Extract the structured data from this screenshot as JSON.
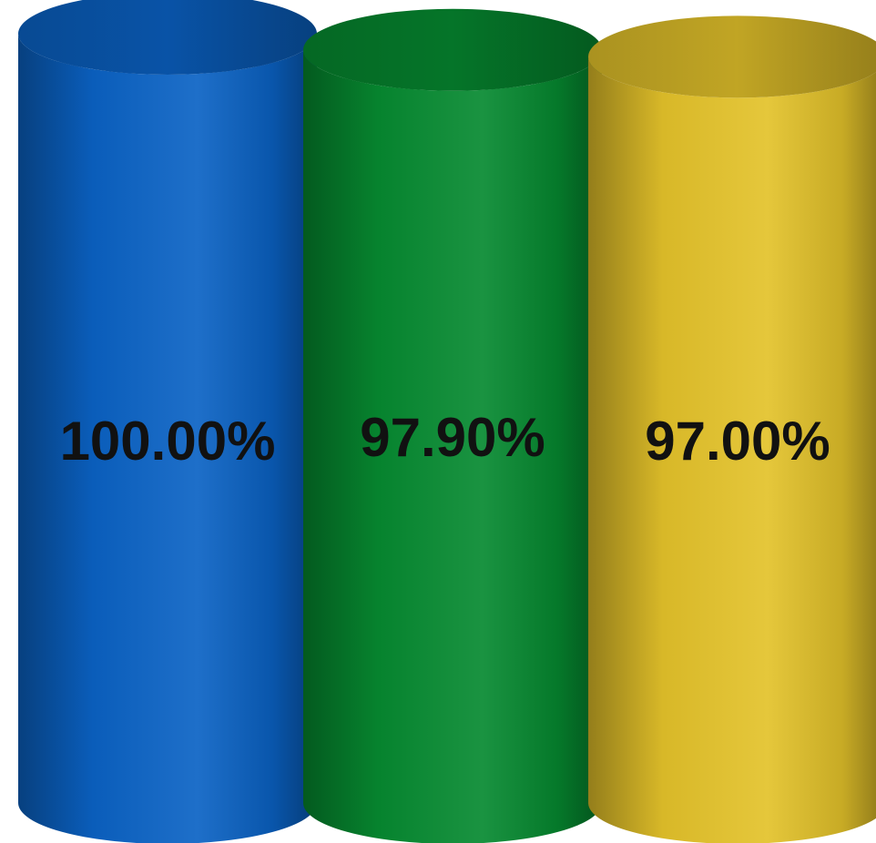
{
  "chart_data": {
    "type": "bar",
    "style": "3d-cylinder",
    "categories": [
      "",
      "",
      ""
    ],
    "values": [
      100.0,
      97.9,
      97.0
    ],
    "value_unit": "%",
    "labels": [
      "100.00%",
      "97.90%",
      "97.00%"
    ],
    "title": "",
    "xlabel": "",
    "ylabel": "",
    "grid": false,
    "legend": "none",
    "colors": [
      "#0A62C4",
      "#068A30",
      "#E3C22A"
    ]
  }
}
